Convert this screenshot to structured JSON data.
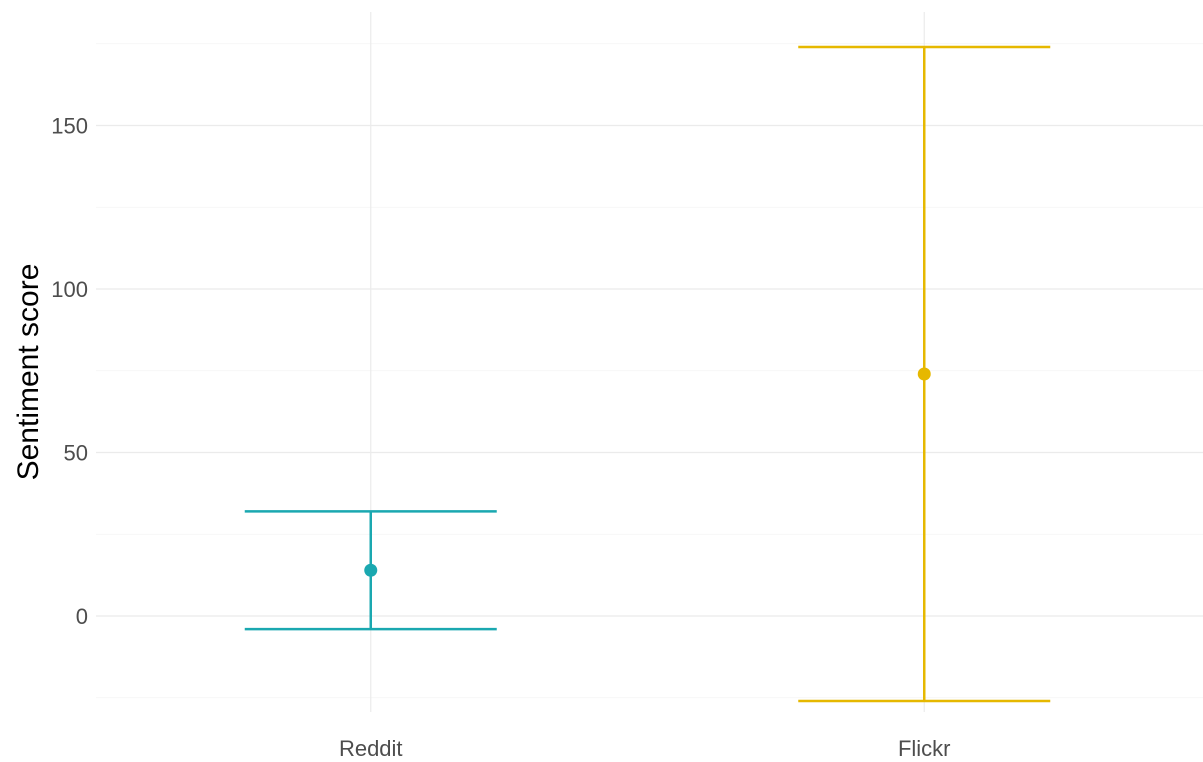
{
  "chart_data": {
    "type": "errorbar",
    "title": "",
    "xlabel": "",
    "ylabel": "Sentiment score",
    "categories": [
      "Reddit",
      "Flickr"
    ],
    "series": [
      {
        "category": "Reddit",
        "mean": 14,
        "lower": -4,
        "upper": 32,
        "color": "#1aa8b0"
      },
      {
        "category": "Flickr",
        "mean": 74,
        "lower": -26,
        "upper": 174,
        "color": "#e6b800"
      }
    ],
    "yticks": [
      0,
      50,
      100,
      150
    ],
    "ylim": [
      -30,
      185
    ],
    "grid": true,
    "legend": "none"
  }
}
